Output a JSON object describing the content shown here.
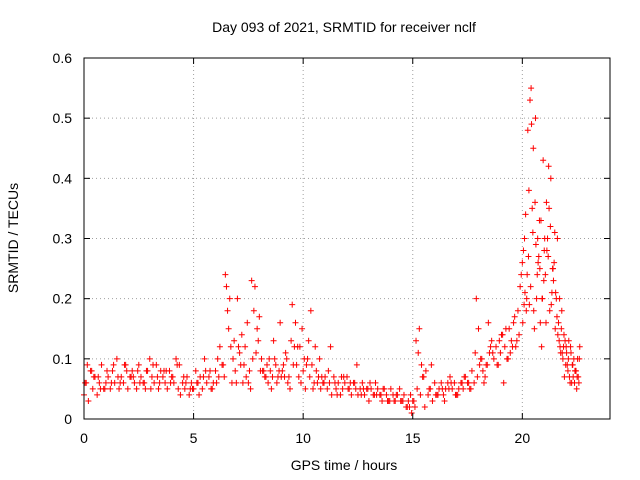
{
  "chart_data": {
    "type": "scatter",
    "title": "Day 093 of 2021, SRMTID for receiver nclf",
    "xlabel": "GPS time / hours",
    "ylabel": "SRMTID / TECUs",
    "xlim": [
      0,
      24
    ],
    "ylim": [
      0,
      0.6
    ],
    "xticks": [
      0,
      5,
      10,
      15,
      20
    ],
    "xtick_labels": [
      "0",
      "5",
      "10",
      "15",
      "20"
    ],
    "yticks": [
      0,
      0.1,
      0.2,
      0.3,
      0.4,
      0.5,
      0.6
    ],
    "ytick_labels": [
      "0",
      "0.1",
      "0.2",
      "0.3",
      "0.4",
      "0.5",
      "0.6"
    ],
    "grid": true,
    "marker": "plus",
    "color": "#ff0000",
    "series": [
      {
        "name": "nclf",
        "x": [
          0.0,
          0.1,
          0.2,
          0.3,
          0.4,
          0.5,
          0.6,
          0.7,
          0.8,
          0.9,
          1.0,
          1.1,
          1.2,
          1.3,
          1.4,
          1.5,
          1.6,
          1.7,
          1.8,
          1.9,
          2.0,
          2.1,
          2.2,
          2.3,
          2.4,
          2.5,
          2.6,
          2.7,
          2.8,
          2.9,
          3.0,
          3.1,
          3.2,
          3.3,
          3.4,
          3.5,
          3.6,
          3.7,
          3.8,
          3.9,
          4.0,
          4.1,
          4.2,
          4.3,
          4.4,
          4.5,
          4.6,
          4.7,
          4.8,
          4.9,
          5.0,
          5.1,
          5.2,
          5.3,
          5.4,
          5.5,
          5.6,
          5.7,
          5.8,
          5.9,
          6.0,
          6.1,
          6.2,
          6.3,
          6.4,
          6.5,
          6.6,
          6.7,
          6.8,
          6.9,
          7.0,
          7.1,
          7.2,
          7.3,
          7.4,
          7.5,
          7.6,
          7.7,
          7.8,
          7.9,
          8.0,
          8.1,
          8.2,
          8.3,
          8.4,
          8.5,
          8.6,
          8.7,
          8.8,
          8.9,
          9.0,
          9.1,
          9.2,
          9.3,
          9.4,
          9.5,
          9.6,
          9.7,
          9.8,
          9.9,
          10.0,
          10.1,
          10.2,
          10.3,
          10.4,
          10.5,
          10.6,
          10.7,
          10.8,
          10.9,
          11.0,
          11.1,
          11.2,
          11.3,
          11.4,
          11.5,
          11.6,
          11.7,
          11.8,
          11.9,
          12.0,
          12.1,
          12.2,
          12.3,
          12.4,
          12.5,
          12.6,
          12.7,
          12.8,
          12.9,
          13.0,
          13.1,
          13.2,
          13.3,
          13.4,
          13.5,
          13.6,
          13.7,
          13.8,
          13.9,
          14.0,
          14.1,
          14.2,
          14.3,
          14.4,
          14.5,
          14.6,
          14.7,
          14.8,
          14.9,
          15.0,
          15.1,
          15.2,
          15.3,
          15.4,
          15.5,
          15.6,
          15.7,
          15.8,
          15.9,
          16.0,
          16.1,
          16.2,
          16.3,
          16.4,
          16.5,
          16.6,
          16.7,
          16.8,
          16.9,
          17.0,
          17.1,
          17.2,
          17.3,
          17.4,
          17.5,
          17.6,
          17.7,
          17.8,
          17.9,
          18.0,
          18.1,
          18.2,
          18.3,
          18.4,
          18.5,
          18.6,
          18.7,
          18.8,
          18.9,
          19.0,
          19.1,
          19.2,
          19.3,
          19.4,
          19.5,
          19.6,
          19.7,
          19.8,
          19.9,
          20.0,
          20.1,
          20.2,
          20.3,
          20.4,
          20.5,
          20.6,
          20.7,
          20.8,
          20.9,
          21.0,
          21.1,
          21.2,
          21.3,
          21.4,
          21.5,
          21.6,
          21.7,
          21.8,
          21.9,
          22.0,
          22.1,
          22.2,
          22.3,
          22.4,
          22.5,
          22.6,
          0.05,
          0.35,
          0.65,
          0.95,
          1.25,
          1.55,
          1.85,
          2.15,
          2.45,
          2.75,
          3.05,
          3.35,
          3.65,
          3.95,
          4.25,
          4.55,
          4.85,
          5.15,
          5.45,
          5.75,
          6.05,
          6.35,
          6.45,
          6.55,
          6.65,
          6.85,
          7.05,
          7.15,
          7.25,
          7.55,
          7.65,
          7.75,
          7.85,
          7.95,
          8.05,
          8.25,
          8.45,
          8.75,
          9.05,
          9.35,
          9.45,
          9.55,
          9.65,
          9.85,
          10.05,
          10.25,
          10.35,
          10.55,
          10.85,
          11.15,
          11.45,
          11.75,
          12.05,
          12.35,
          12.65,
          12.95,
          13.25,
          13.55,
          13.85,
          14.15,
          14.45,
          14.75,
          14.95,
          15.05,
          15.15,
          15.25,
          15.45,
          15.75,
          16.05,
          16.35,
          16.65,
          16.95,
          17.25,
          17.55,
          17.85,
          18.05,
          18.15,
          18.35,
          18.55,
          18.85,
          19.05,
          19.25,
          19.45,
          19.65,
          19.85,
          19.95,
          20.05,
          20.15,
          20.25,
          20.35,
          20.42,
          20.45,
          20.48,
          20.55,
          20.65,
          20.75,
          20.85,
          20.95,
          21.02,
          21.05,
          21.08,
          21.12,
          21.15,
          21.25,
          21.35,
          21.45,
          21.55,
          21.65,
          21.75,
          21.85,
          21.95,
          22.05,
          22.15,
          22.25,
          22.35,
          22.45,
          22.55,
          0.15,
          0.45,
          0.75,
          1.05,
          1.35,
          1.65,
          1.95,
          2.25,
          2.55,
          2.85,
          3.15,
          3.45,
          3.75,
          4.05,
          4.35,
          4.65,
          4.95,
          5.25,
          5.55,
          5.85,
          6.15,
          6.75,
          6.95,
          7.35,
          7.45,
          8.15,
          8.35,
          8.55,
          8.65,
          8.85,
          8.95,
          9.15,
          9.25,
          9.75,
          9.95,
          10.15,
          10.45,
          10.65,
          10.75,
          10.95,
          11.25,
          11.55,
          11.85,
          12.15,
          12.45,
          12.75,
          13.05,
          13.35,
          13.65,
          13.95,
          14.25,
          14.55,
          14.85,
          15.35,
          15.55,
          15.85,
          16.15,
          16.45,
          16.75,
          17.05,
          17.35,
          17.65,
          17.95,
          18.25,
          18.45,
          18.65,
          18.95,
          19.15,
          19.35,
          19.55,
          19.75,
          20.02,
          20.08,
          20.12,
          20.18,
          20.22,
          20.28,
          20.32,
          20.38,
          20.52,
          20.58,
          20.62,
          20.68,
          20.72,
          20.78,
          20.82,
          20.88,
          20.92,
          20.98,
          21.18,
          21.22,
          21.28,
          21.32,
          21.38,
          21.42,
          21.48,
          21.52,
          21.58,
          21.62,
          21.68,
          21.72,
          21.78,
          21.82,
          21.88,
          21.92,
          21.98,
          22.02,
          22.08,
          22.12,
          22.18,
          22.22,
          22.28,
          22.32,
          22.38,
          22.42,
          22.48,
          22.52,
          22.58,
          22.62
        ],
        "y": [
          0.04,
          0.06,
          0.03,
          0.08,
          0.05,
          0.07,
          0.04,
          0.06,
          0.09,
          0.05,
          0.06,
          0.07,
          0.05,
          0.08,
          0.06,
          0.1,
          0.05,
          0.07,
          0.06,
          0.09,
          0.05,
          0.07,
          0.08,
          0.06,
          0.05,
          0.09,
          0.07,
          0.06,
          0.05,
          0.08,
          0.1,
          0.07,
          0.06,
          0.09,
          0.05,
          0.08,
          0.07,
          0.06,
          0.05,
          0.08,
          0.07,
          0.06,
          0.1,
          0.05,
          0.04,
          0.06,
          0.05,
          0.07,
          0.04,
          0.06,
          0.05,
          0.08,
          0.06,
          0.07,
          0.05,
          0.1,
          0.06,
          0.07,
          0.05,
          0.06,
          0.08,
          0.1,
          0.12,
          0.09,
          0.07,
          0.22,
          0.15,
          0.12,
          0.1,
          0.08,
          0.2,
          0.11,
          0.14,
          0.09,
          0.07,
          0.06,
          0.05,
          0.1,
          0.22,
          0.15,
          0.17,
          0.1,
          0.08,
          0.07,
          0.06,
          0.08,
          0.07,
          0.1,
          0.06,
          0.08,
          0.07,
          0.09,
          0.11,
          0.06,
          0.05,
          0.19,
          0.12,
          0.09,
          0.07,
          0.06,
          0.08,
          0.05,
          0.1,
          0.07,
          0.09,
          0.06,
          0.08,
          0.07,
          0.05,
          0.06,
          0.07,
          0.05,
          0.06,
          0.04,
          0.07,
          0.05,
          0.06,
          0.04,
          0.05,
          0.06,
          0.07,
          0.05,
          0.04,
          0.06,
          0.05,
          0.04,
          0.05,
          0.06,
          0.04,
          0.05,
          0.03,
          0.05,
          0.04,
          0.06,
          0.05,
          0.04,
          0.03,
          0.05,
          0.04,
          0.03,
          0.05,
          0.04,
          0.03,
          0.04,
          0.05,
          0.03,
          0.04,
          0.02,
          0.03,
          0.04,
          0.03,
          0.02,
          0.05,
          0.15,
          0.09,
          0.07,
          0.08,
          0.04,
          0.05,
          0.03,
          0.06,
          0.04,
          0.05,
          0.06,
          0.04,
          0.05,
          0.06,
          0.07,
          0.05,
          0.06,
          0.04,
          0.05,
          0.06,
          0.05,
          0.07,
          0.06,
          0.05,
          0.08,
          0.06,
          0.2,
          0.15,
          0.1,
          0.08,
          0.07,
          0.09,
          0.11,
          0.13,
          0.1,
          0.12,
          0.09,
          0.11,
          0.14,
          0.12,
          0.1,
          0.15,
          0.13,
          0.16,
          0.12,
          0.18,
          0.22,
          0.26,
          0.3,
          0.2,
          0.38,
          0.55,
          0.45,
          0.5,
          0.3,
          0.25,
          0.2,
          0.28,
          0.36,
          0.42,
          0.4,
          0.25,
          0.15,
          0.3,
          0.2,
          0.18,
          0.14,
          0.12,
          0.1,
          0.12,
          0.09,
          0.08,
          0.07,
          0.1,
          0.06,
          0.08,
          0.07,
          0.05,
          0.06,
          0.07,
          0.09,
          0.07,
          0.08,
          0.06,
          0.05,
          0.07,
          0.08,
          0.06,
          0.09,
          0.07,
          0.05,
          0.06,
          0.07,
          0.08,
          0.06,
          0.09,
          0.24,
          0.18,
          0.2,
          0.13,
          0.12,
          0.09,
          0.06,
          0.08,
          0.23,
          0.18,
          0.11,
          0.13,
          0.08,
          0.07,
          0.1,
          0.09,
          0.08,
          0.07,
          0.13,
          0.09,
          0.16,
          0.12,
          0.1,
          0.13,
          0.18,
          0.12,
          0.07,
          0.08,
          0.06,
          0.07,
          0.05,
          0.06,
          0.04,
          0.05,
          0.04,
          0.04,
          0.03,
          0.03,
          0.03,
          0.02,
          0.01,
          0.03,
          0.13,
          0.11,
          0.07,
          0.05,
          0.04,
          0.05,
          0.05,
          0.04,
          0.06,
          0.06,
          0.11,
          0.09,
          0.1,
          0.09,
          0.12,
          0.09,
          0.14,
          0.15,
          0.11,
          0.17,
          0.14,
          0.24,
          0.28,
          0.34,
          0.48,
          0.53,
          0.49,
          0.35,
          0.31,
          0.15,
          0.2,
          0.27,
          0.33,
          0.43,
          0.3,
          0.24,
          0.16,
          0.28,
          0.3,
          0.18,
          0.21,
          0.26,
          0.2,
          0.16,
          0.11,
          0.1,
          0.13,
          0.09,
          0.07,
          0.06,
          0.1,
          0.08,
          0.07,
          0.09,
          0.07,
          0.05,
          0.08,
          0.09,
          0.06,
          0.08,
          0.07,
          0.06,
          0.08,
          0.09,
          0.06,
          0.08,
          0.07,
          0.09,
          0.06,
          0.05,
          0.04,
          0.08,
          0.05,
          0.07,
          0.06,
          0.06,
          0.12,
          0.16,
          0.08,
          0.09,
          0.05,
          0.13,
          0.07,
          0.16,
          0.07,
          0.1,
          0.12,
          0.15,
          0.09,
          0.05,
          0.06,
          0.1,
          0.06,
          0.12,
          0.04,
          0.07,
          0.06,
          0.09,
          0.05,
          0.06,
          0.04,
          0.05,
          0.03,
          0.04,
          0.03,
          0.02,
          0.04,
          0.02,
          0.09,
          0.04,
          0.03,
          0.06,
          0.04,
          0.07,
          0.05,
          0.07,
          0.06,
          0.16,
          0.11,
          0.13,
          0.06,
          0.1,
          0.12,
          0.13,
          0.16,
          0.19,
          0.21,
          0.18,
          0.24,
          0.27,
          0.19,
          0.22,
          0.18,
          0.36,
          0.29,
          0.24,
          0.26,
          0.33,
          0.16,
          0.12,
          0.2,
          0.23,
          0.27,
          0.35,
          0.32,
          0.19,
          0.25,
          0.23,
          0.31,
          0.21,
          0.17,
          0.14,
          0.13,
          0.12,
          0.15,
          0.11,
          0.12,
          0.07,
          0.09,
          0.11,
          0.08,
          0.13,
          0.06,
          0.11,
          0.09,
          0.07,
          0.06,
          0.08,
          0.05,
          0.1,
          0.06,
          0.12
        ]
      }
    ]
  }
}
